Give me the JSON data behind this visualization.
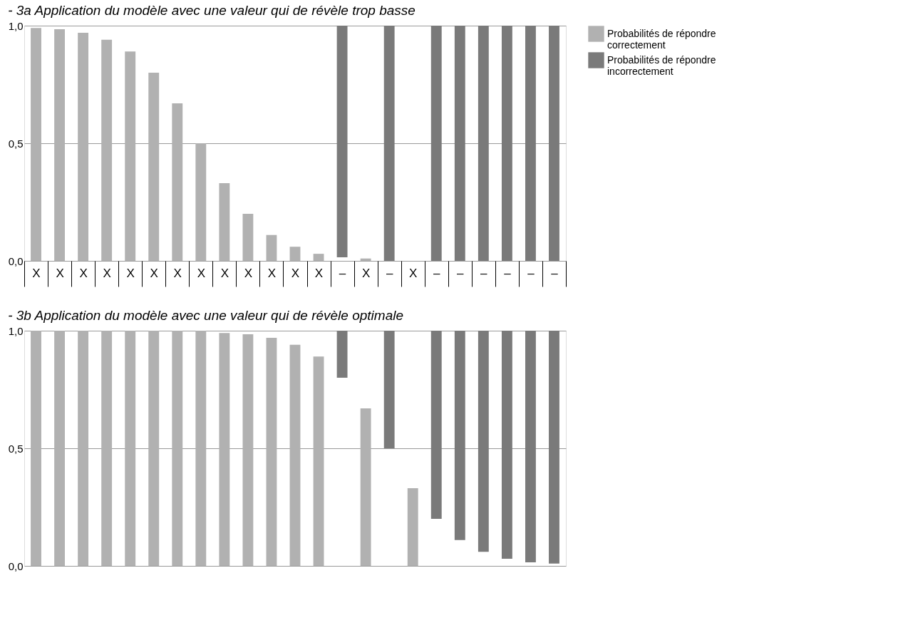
{
  "chart_data": [
    {
      "type": "bar",
      "title": "- 3a Application du modèle avec une valeur qui de révèle trop basse",
      "categories": [
        "X",
        "X",
        "X",
        "X",
        "X",
        "X",
        "X",
        "X",
        "X",
        "X",
        "X",
        "X",
        "X",
        "–",
        "X",
        "–",
        "X",
        "–",
        "–",
        "–",
        "–",
        "–",
        "–"
      ],
      "series": [
        {
          "name": "Probabilités de répondre correctement",
          "color": "#b1b1b1",
          "values": [
            0.99,
            0.985,
            0.97,
            0.94,
            0.89,
            0.8,
            0.67,
            0.5,
            0.33,
            0.2,
            0.11,
            0.06,
            0.03,
            null,
            0.01,
            null,
            null,
            null,
            null,
            null,
            null,
            null,
            null
          ]
        },
        {
          "name": "Probabilités de répondre incorrectement",
          "color": "#7a7a7a",
          "values": [
            null,
            null,
            null,
            null,
            null,
            null,
            null,
            null,
            null,
            null,
            null,
            null,
            null,
            0.985,
            null,
            1.0,
            null,
            1.0,
            1.0,
            1.0,
            1.0,
            1.0,
            1.0
          ],
          "base": [
            null,
            null,
            null,
            null,
            null,
            null,
            null,
            null,
            null,
            null,
            null,
            null,
            null,
            0.015,
            null,
            0.0,
            null,
            0.0,
            0.0,
            0.0,
            0.0,
            0.0,
            0.0
          ]
        }
      ],
      "ylim": [
        0,
        1
      ],
      "yticks": [
        {
          "value": 0,
          "label": "0,0"
        },
        {
          "value": 0.5,
          "label": "0,5"
        },
        {
          "value": 1,
          "label": "1,0"
        }
      ],
      "grid": "y",
      "legend": "top right"
    },
    {
      "type": "bar",
      "title": "- 3b Application du modèle avec une valeur qui de révèle optimale",
      "categories": [
        null,
        null,
        null,
        null,
        null,
        null,
        null,
        null,
        null,
        null,
        null,
        null,
        null,
        null,
        null,
        null,
        null,
        null,
        null,
        null,
        null,
        null,
        null
      ],
      "series": [
        {
          "name": "Probabilités de répondre correctement",
          "color": "#b1b1b1",
          "values": [
            1.0,
            1.0,
            1.0,
            1.0,
            1.0,
            1.0,
            1.0,
            1.0,
            0.99,
            0.985,
            0.97,
            0.94,
            0.89,
            null,
            0.67,
            null,
            0.33,
            null,
            null,
            null,
            null,
            null,
            null
          ]
        },
        {
          "name": "Probabilités de répondre incorrectement",
          "color": "#7a7a7a",
          "values": [
            null,
            null,
            null,
            null,
            null,
            null,
            null,
            null,
            null,
            null,
            null,
            null,
            null,
            0.2,
            null,
            0.5,
            null,
            0.8,
            0.89,
            0.94,
            0.97,
            0.985,
            0.99
          ],
          "base": [
            null,
            null,
            null,
            null,
            null,
            null,
            null,
            null,
            null,
            null,
            null,
            null,
            null,
            0.8,
            null,
            0.5,
            null,
            0.2,
            0.11,
            0.06,
            0.03,
            0.015,
            0.01
          ]
        }
      ],
      "ylim": [
        0,
        1
      ],
      "yticks": [
        {
          "value": 0,
          "label": "0,0"
        },
        {
          "value": 0.5,
          "label": "0,5"
        },
        {
          "value": 1,
          "label": "1,0"
        }
      ],
      "grid": "y",
      "legend": false,
      "tick_labels": "y"
    }
  ]
}
